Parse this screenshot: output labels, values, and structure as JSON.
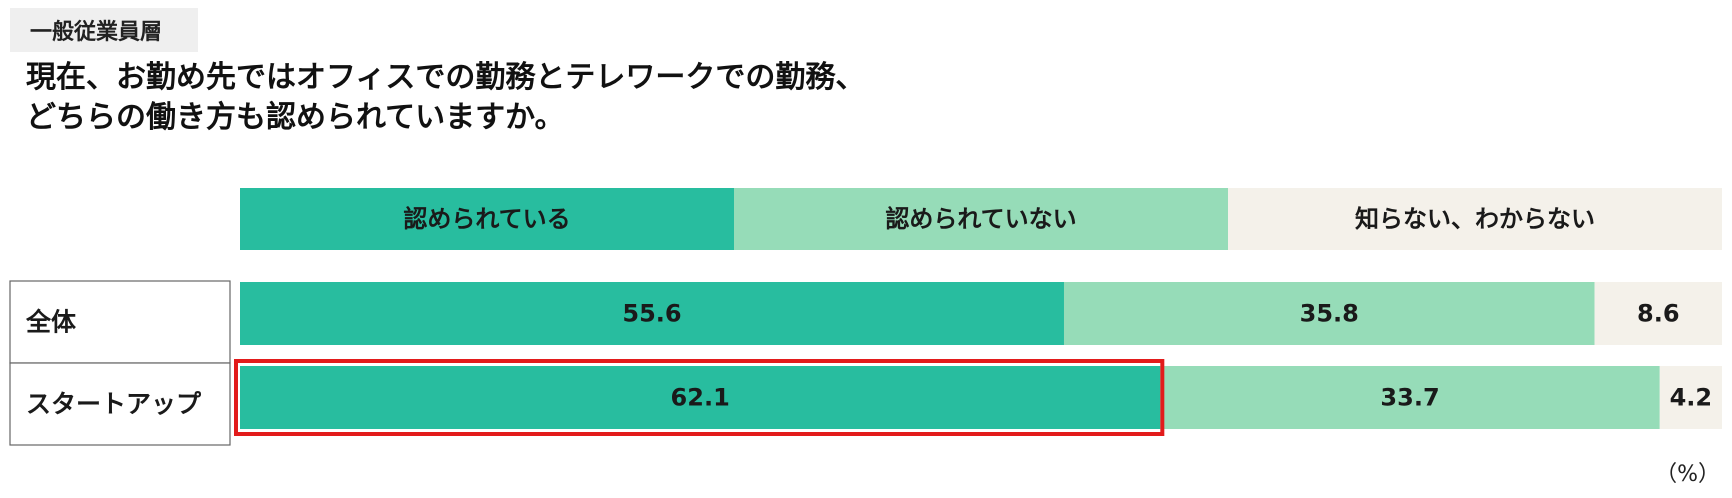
{
  "header": {
    "tag": "一般従業員層",
    "title_lines": [
      "現在、お勤め先ではオフィスでの勤務とテレワークでの勤務、",
      "どちらの働き方も認められていますか。"
    ],
    "unit": "（%）"
  },
  "chart_data": {
    "type": "bar",
    "orientation": "horizontal",
    "stacked": true,
    "percent": true,
    "categories": [
      "全体",
      "スタートアップ"
    ],
    "series": [
      {
        "name": "認められている",
        "values": [
          55.6,
          62.1
        ],
        "color": "#28bd9f"
      },
      {
        "name": "認められていない",
        "values": [
          35.8,
          33.7
        ],
        "color": "#96dcb8"
      },
      {
        "name": "知らない、わからない",
        "values": [
          8.6,
          4.2
        ],
        "color": "#f4f1ea"
      }
    ],
    "xlim": [
      0,
      100
    ],
    "legend": "top",
    "highlight": {
      "category": "スタートアップ",
      "series": "認められている",
      "color": "#e21b1b"
    },
    "grid": false
  }
}
